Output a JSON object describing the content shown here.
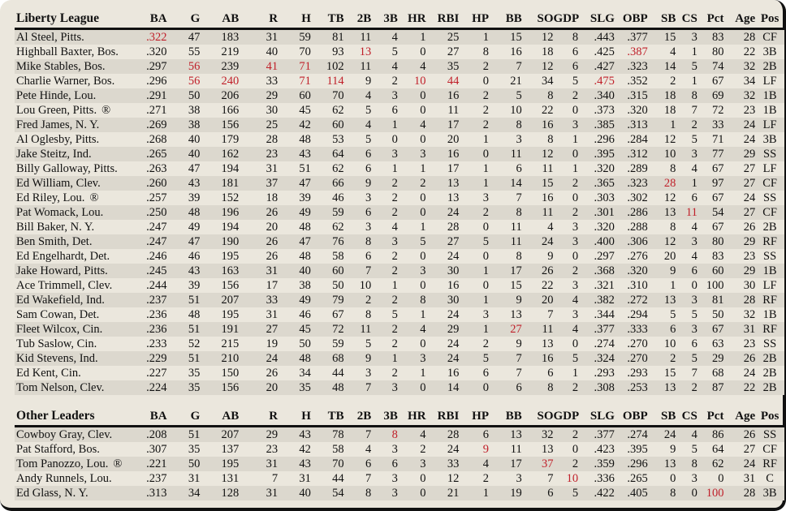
{
  "columns": [
    "BA",
    "G",
    "AB",
    "R",
    "H",
    "TB",
    "2B",
    "3B",
    "HR",
    "RBI",
    "HP",
    "BB",
    "SO",
    "GDP",
    "SLG",
    "OBP",
    "SB",
    "CS",
    "Pct",
    "Age",
    "Pos"
  ],
  "accent_color": "#c0202a",
  "sections": [
    {
      "title": "Liberty League",
      "rows": [
        {
          "name": "Al Steel, Pitts.",
          "rookie": false,
          "stats": [
            ".322",
            "47",
            "183",
            "31",
            "59",
            "81",
            "11",
            "4",
            "1",
            "25",
            "1",
            "15",
            "12",
            "8",
            ".443",
            ".377",
            "15",
            "3",
            "83",
            "28",
            "CF"
          ],
          "highlight": [
            0
          ]
        },
        {
          "name": "Highball Baxter, Bos.",
          "rookie": false,
          "stats": [
            ".320",
            "55",
            "219",
            "40",
            "70",
            "93",
            "13",
            "5",
            "0",
            "27",
            "8",
            "16",
            "18",
            "6",
            ".425",
            ".387",
            "4",
            "1",
            "80",
            "22",
            "3B"
          ],
          "highlight": [
            6,
            15
          ]
        },
        {
          "name": "Mike Stables, Bos.",
          "rookie": false,
          "stats": [
            ".297",
            "56",
            "239",
            "41",
            "71",
            "102",
            "11",
            "4",
            "4",
            "35",
            "2",
            "7",
            "12",
            "6",
            ".427",
            ".323",
            "14",
            "5",
            "74",
            "32",
            "2B"
          ],
          "highlight": [
            1,
            3,
            4
          ]
        },
        {
          "name": "Charlie Warner, Bos.",
          "rookie": false,
          "stats": [
            ".296",
            "56",
            "240",
            "33",
            "71",
            "114",
            "9",
            "2",
            "10",
            "44",
            "0",
            "21",
            "34",
            "5",
            ".475",
            ".352",
            "2",
            "1",
            "67",
            "34",
            "LF"
          ],
          "highlight": [
            1,
            2,
            4,
            5,
            8,
            9,
            14
          ]
        },
        {
          "name": "Pete Hinde, Lou.",
          "rookie": false,
          "stats": [
            ".291",
            "50",
            "206",
            "29",
            "60",
            "70",
            "4",
            "3",
            "0",
            "16",
            "2",
            "5",
            "8",
            "2",
            ".340",
            ".315",
            "18",
            "8",
            "69",
            "32",
            "1B"
          ],
          "highlight": []
        },
        {
          "name": "Lou Green, Pitts.",
          "rookie": true,
          "stats": [
            ".271",
            "38",
            "166",
            "30",
            "45",
            "62",
            "5",
            "6",
            "0",
            "11",
            "2",
            "10",
            "22",
            "0",
            ".373",
            ".320",
            "18",
            "7",
            "72",
            "23",
            "1B"
          ],
          "highlight": []
        },
        {
          "name": "Fred James, N. Y.",
          "rookie": false,
          "stats": [
            ".269",
            "38",
            "156",
            "25",
            "42",
            "60",
            "4",
            "1",
            "4",
            "17",
            "2",
            "8",
            "16",
            "3",
            ".385",
            ".313",
            "1",
            "2",
            "33",
            "24",
            "LF"
          ],
          "highlight": []
        },
        {
          "name": "Al Oglesby, Pitts.",
          "rookie": false,
          "stats": [
            ".268",
            "40",
            "179",
            "28",
            "48",
            "53",
            "5",
            "0",
            "0",
            "20",
            "1",
            "3",
            "8",
            "1",
            ".296",
            ".284",
            "12",
            "5",
            "71",
            "24",
            "3B"
          ],
          "highlight": []
        },
        {
          "name": "Jake Steitz, Ind.",
          "rookie": false,
          "stats": [
            ".265",
            "40",
            "162",
            "23",
            "43",
            "64",
            "6",
            "3",
            "3",
            "16",
            "0",
            "11",
            "12",
            "0",
            ".395",
            ".312",
            "10",
            "3",
            "77",
            "29",
            "SS"
          ],
          "highlight": []
        },
        {
          "name": "Billy Galloway, Pitts.",
          "rookie": false,
          "stats": [
            ".263",
            "47",
            "194",
            "31",
            "51",
            "62",
            "6",
            "1",
            "1",
            "17",
            "1",
            "6",
            "11",
            "1",
            ".320",
            ".289",
            "8",
            "4",
            "67",
            "27",
            "LF"
          ],
          "highlight": []
        },
        {
          "name": "Ed William, Clev.",
          "rookie": false,
          "stats": [
            ".260",
            "43",
            "181",
            "37",
            "47",
            "66",
            "9",
            "2",
            "2",
            "13",
            "1",
            "14",
            "15",
            "2",
            ".365",
            ".323",
            "28",
            "1",
            "97",
            "27",
            "CF"
          ],
          "highlight": [
            16
          ]
        },
        {
          "name": "Ed Riley, Lou.",
          "rookie": true,
          "stats": [
            ".257",
            "39",
            "152",
            "18",
            "39",
            "46",
            "3",
            "2",
            "0",
            "13",
            "3",
            "7",
            "16",
            "0",
            ".303",
            ".302",
            "12",
            "6",
            "67",
            "24",
            "SS"
          ],
          "highlight": []
        },
        {
          "name": "Pat Womack, Lou.",
          "rookie": false,
          "stats": [
            ".250",
            "48",
            "196",
            "26",
            "49",
            "59",
            "6",
            "2",
            "0",
            "24",
            "2",
            "8",
            "11",
            "2",
            ".301",
            ".286",
            "13",
            "11",
            "54",
            "27",
            "CF"
          ],
          "highlight": [
            17
          ]
        },
        {
          "name": "Bill Baker, N. Y.",
          "rookie": false,
          "stats": [
            ".247",
            "49",
            "194",
            "20",
            "48",
            "62",
            "3",
            "4",
            "1",
            "28",
            "0",
            "11",
            "4",
            "3",
            ".320",
            ".288",
            "8",
            "4",
            "67",
            "26",
            "2B"
          ],
          "highlight": []
        },
        {
          "name": "Ben Smith, Det.",
          "rookie": false,
          "stats": [
            ".247",
            "47",
            "190",
            "26",
            "47",
            "76",
            "8",
            "3",
            "5",
            "27",
            "5",
            "11",
            "24",
            "3",
            ".400",
            ".306",
            "12",
            "3",
            "80",
            "29",
            "RF"
          ],
          "highlight": []
        },
        {
          "name": "Ed Engelhardt, Det.",
          "rookie": false,
          "stats": [
            ".246",
            "46",
            "195",
            "26",
            "48",
            "58",
            "6",
            "2",
            "0",
            "24",
            "0",
            "8",
            "9",
            "0",
            ".297",
            ".276",
            "20",
            "4",
            "83",
            "23",
            "SS"
          ],
          "highlight": []
        },
        {
          "name": "Jake Howard, Pitts.",
          "rookie": false,
          "stats": [
            ".245",
            "43",
            "163",
            "31",
            "40",
            "60",
            "7",
            "2",
            "3",
            "30",
            "1",
            "17",
            "26",
            "2",
            ".368",
            ".320",
            "9",
            "6",
            "60",
            "29",
            "1B"
          ],
          "highlight": []
        },
        {
          "name": "Ace Trimmell, Clev.",
          "rookie": false,
          "stats": [
            ".244",
            "39",
            "156",
            "17",
            "38",
            "50",
            "10",
            "1",
            "0",
            "16",
            "0",
            "15",
            "22",
            "3",
            ".321",
            ".310",
            "1",
            "0",
            "100",
            "30",
            "LF"
          ],
          "highlight": []
        },
        {
          "name": "Ed Wakefield, Ind.",
          "rookie": false,
          "stats": [
            ".237",
            "51",
            "207",
            "33",
            "49",
            "79",
            "2",
            "2",
            "8",
            "30",
            "1",
            "9",
            "20",
            "4",
            ".382",
            ".272",
            "13",
            "3",
            "81",
            "28",
            "RF"
          ],
          "highlight": []
        },
        {
          "name": "Sam Cowan, Det.",
          "rookie": false,
          "stats": [
            ".236",
            "48",
            "195",
            "31",
            "46",
            "67",
            "8",
            "5",
            "1",
            "24",
            "3",
            "13",
            "7",
            "3",
            ".344",
            ".294",
            "5",
            "5",
            "50",
            "32",
            "1B"
          ],
          "highlight": []
        },
        {
          "name": "Fleet Wilcox, Cin.",
          "rookie": false,
          "stats": [
            ".236",
            "51",
            "191",
            "27",
            "45",
            "72",
            "11",
            "2",
            "4",
            "29",
            "1",
            "27",
            "11",
            "4",
            ".377",
            ".333",
            "6",
            "3",
            "67",
            "31",
            "RF"
          ],
          "highlight": [
            11
          ]
        },
        {
          "name": "Tub Saslow, Cin.",
          "rookie": false,
          "stats": [
            ".233",
            "52",
            "215",
            "19",
            "50",
            "59",
            "5",
            "2",
            "0",
            "24",
            "2",
            "9",
            "13",
            "0",
            ".274",
            ".270",
            "10",
            "6",
            "63",
            "23",
            "SS"
          ],
          "highlight": []
        },
        {
          "name": "Kid Stevens, Ind.",
          "rookie": false,
          "stats": [
            ".229",
            "51",
            "210",
            "24",
            "48",
            "68",
            "9",
            "1",
            "3",
            "24",
            "5",
            "7",
            "16",
            "5",
            ".324",
            ".270",
            "2",
            "5",
            "29",
            "26",
            "2B"
          ],
          "highlight": []
        },
        {
          "name": "Ed Kent, Cin.",
          "rookie": false,
          "stats": [
            ".227",
            "35",
            "150",
            "26",
            "34",
            "44",
            "3",
            "2",
            "1",
            "16",
            "6",
            "7",
            "6",
            "1",
            ".293",
            ".293",
            "15",
            "7",
            "68",
            "24",
            "2B"
          ],
          "highlight": []
        },
        {
          "name": "Tom Nelson, Clev.",
          "rookie": false,
          "stats": [
            ".224",
            "35",
            "156",
            "20",
            "35",
            "48",
            "7",
            "3",
            "0",
            "14",
            "0",
            "6",
            "8",
            "2",
            ".308",
            ".253",
            "13",
            "2",
            "87",
            "22",
            "2B"
          ],
          "highlight": []
        }
      ]
    },
    {
      "title": "Other Leaders",
      "rows": [
        {
          "name": "Cowboy Gray, Clev.",
          "rookie": false,
          "stats": [
            ".208",
            "51",
            "207",
            "29",
            "43",
            "78",
            "7",
            "8",
            "4",
            "28",
            "6",
            "13",
            "32",
            "2",
            ".377",
            ".274",
            "24",
            "4",
            "86",
            "26",
            "SS"
          ],
          "highlight": [
            7
          ]
        },
        {
          "name": "Pat Stafford, Bos.",
          "rookie": false,
          "stats": [
            ".307",
            "35",
            "137",
            "23",
            "42",
            "58",
            "4",
            "3",
            "2",
            "24",
            "9",
            "11",
            "13",
            "0",
            ".423",
            ".395",
            "9",
            "5",
            "64",
            "27",
            "CF"
          ],
          "highlight": [
            10
          ]
        },
        {
          "name": "Tom Panozzo, Lou.",
          "rookie": true,
          "stats": [
            ".221",
            "50",
            "195",
            "31",
            "43",
            "70",
            "6",
            "6",
            "3",
            "33",
            "4",
            "17",
            "37",
            "2",
            ".359",
            ".296",
            "13",
            "8",
            "62",
            "24",
            "RF"
          ],
          "highlight": [
            12
          ]
        },
        {
          "name": "Andy Runnels, Lou.",
          "rookie": false,
          "stats": [
            ".237",
            "31",
            "131",
            "7",
            "31",
            "44",
            "7",
            "3",
            "0",
            "12",
            "2",
            "3",
            "7",
            "10",
            ".336",
            ".265",
            "0",
            "3",
            "0",
            "31",
            "C"
          ],
          "highlight": [
            13
          ]
        },
        {
          "name": "Ed Glass, N. Y.",
          "rookie": false,
          "stats": [
            ".313",
            "34",
            "128",
            "31",
            "40",
            "54",
            "8",
            "3",
            "0",
            "21",
            "1",
            "19",
            "6",
            "5",
            ".422",
            ".405",
            "8",
            "0",
            "100",
            "28",
            "3B"
          ],
          "highlight": [
            18
          ]
        }
      ]
    }
  ],
  "rookie_mark": "®"
}
